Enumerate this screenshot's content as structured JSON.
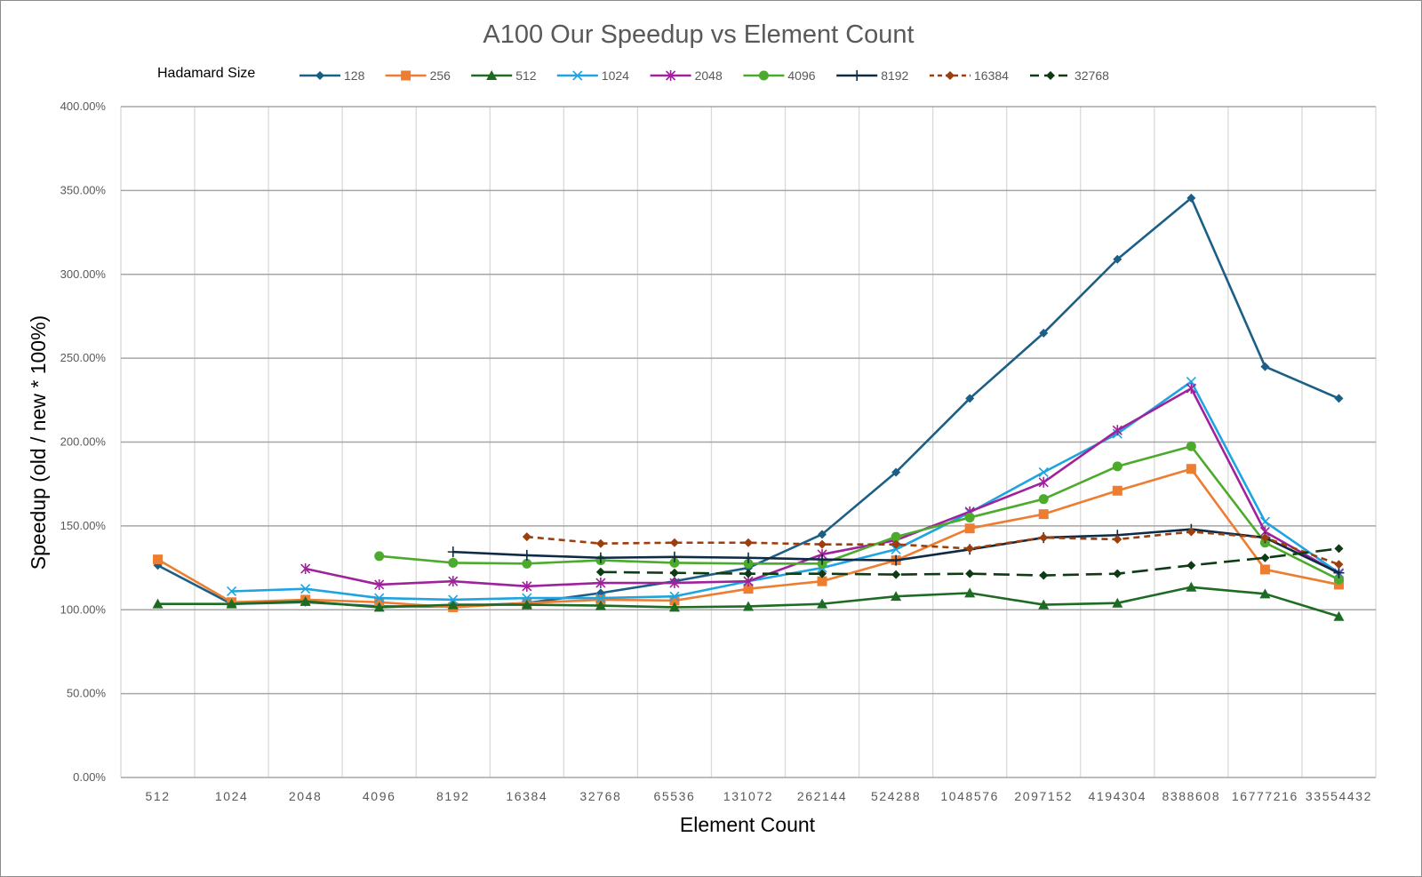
{
  "chart_data": {
    "type": "line",
    "title": "A100 Our Speedup vs Element Count",
    "xlabel": "Element Count",
    "ylabel": "Speedup (old / new * 100%)",
    "legend_title": "Hadamard Size",
    "legend_position": "top",
    "grid": true,
    "ylim": [
      0,
      400
    ],
    "y_ticks": [
      "0.00%",
      "50.00%",
      "100.00%",
      "150.00%",
      "200.00%",
      "250.00%",
      "300.00%",
      "350.00%",
      "400.00%"
    ],
    "categories": [
      "512",
      "1024",
      "2048",
      "4096",
      "8192",
      "16384",
      "32768",
      "65536",
      "131072",
      "262144",
      "524288",
      "1048576",
      "2097152",
      "4194304",
      "8388608",
      "16777216",
      "33554432"
    ],
    "series": [
      {
        "name": "128",
        "color": "#1b5f86",
        "marker": "diamond",
        "dash": "solid",
        "values": [
          126.5,
          103.5,
          104.5,
          102,
          102,
          104,
          110,
          117,
          125,
          145,
          182,
          226,
          265,
          309,
          345.5,
          245,
          226
        ]
      },
      {
        "name": "256",
        "color": "#ed7d31",
        "marker": "square",
        "dash": "solid",
        "values": [
          130,
          104.5,
          106,
          104.5,
          101.5,
          104,
          106,
          105.5,
          112.5,
          117,
          129.5,
          148.5,
          157,
          171,
          184,
          124,
          115
        ]
      },
      {
        "name": "512",
        "color": "#1e6b24",
        "marker": "triangle",
        "dash": "solid",
        "values": [
          103.5,
          103.5,
          105,
          101.5,
          103,
          103,
          102.5,
          101.5,
          102,
          103.5,
          108,
          110,
          103,
          104,
          113.5,
          109.5,
          96
        ]
      },
      {
        "name": "1024",
        "color": "#1ea4e0",
        "marker": "x",
        "dash": "solid",
        "values": [
          null,
          111,
          112.5,
          107,
          106,
          107,
          107,
          108,
          117,
          125,
          136,
          158,
          182,
          205,
          236,
          152.5,
          122
        ]
      },
      {
        "name": "2048",
        "color": "#a0229b",
        "marker": "asterisk",
        "dash": "solid",
        "values": [
          null,
          null,
          124.5,
          115,
          117,
          114,
          116,
          116,
          117,
          133,
          141.5,
          158.5,
          176,
          207,
          232,
          146.5,
          121.5
        ]
      },
      {
        "name": "4096",
        "color": "#4caa2c",
        "marker": "circle",
        "dash": "solid",
        "values": [
          null,
          null,
          null,
          132,
          128,
          127.5,
          129.5,
          128,
          127.5,
          127.5,
          143.5,
          155,
          166,
          185.5,
          197.5,
          140,
          118
        ]
      },
      {
        "name": "8192",
        "color": "#0f2a45",
        "marker": "plus",
        "dash": "solid",
        "values": [
          null,
          null,
          null,
          null,
          134.5,
          132.5,
          131,
          131.5,
          131,
          130,
          129.5,
          136,
          143,
          144.5,
          148,
          143,
          122
        ]
      },
      {
        "name": "16384",
        "color": "#9c3f0e",
        "marker": "diamond",
        "dash": "dashed",
        "values": [
          null,
          null,
          null,
          null,
          null,
          143.5,
          139.5,
          140,
          140,
          139,
          139,
          136.5,
          143,
          142,
          146.5,
          143,
          127
        ]
      },
      {
        "name": "32768",
        "color": "#0e3a14",
        "marker": "diamond",
        "dash": "longdash",
        "values": [
          null,
          null,
          null,
          null,
          null,
          null,
          122.5,
          122,
          121.5,
          121.5,
          121,
          121.5,
          120.5,
          121.5,
          126.5,
          131,
          136.5
        ]
      }
    ]
  }
}
